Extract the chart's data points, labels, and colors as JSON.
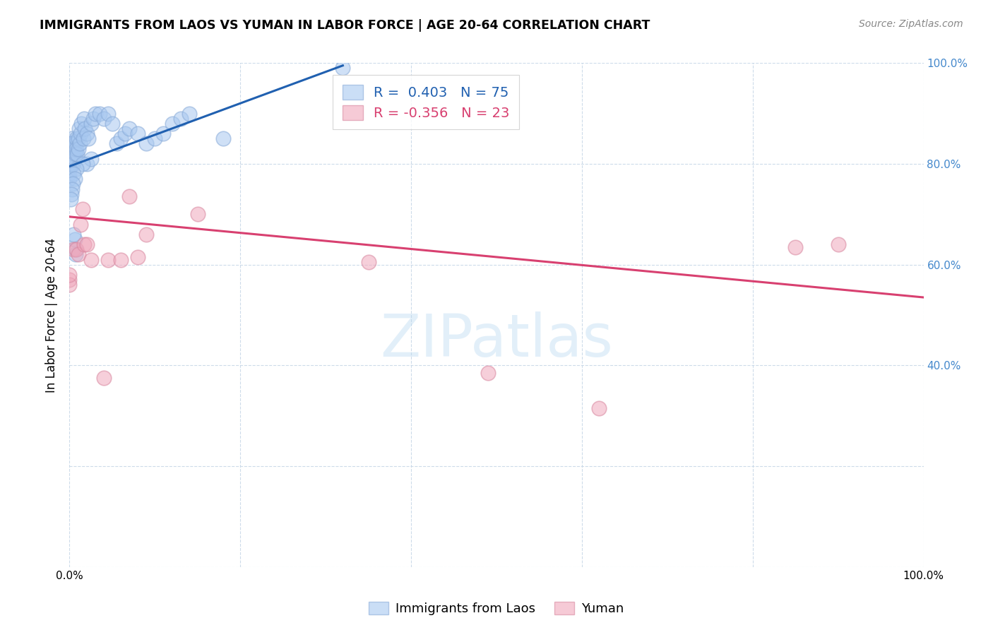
{
  "title": "IMMIGRANTS FROM LAOS VS YUMAN IN LABOR FORCE | AGE 20-64 CORRELATION CHART",
  "source": "Source: ZipAtlas.com",
  "ylabel": "In Labor Force | Age 20-64",
  "xlim": [
    0,
    1.0
  ],
  "ylim": [
    0,
    1.0
  ],
  "laos_R": 0.403,
  "laos_N": 75,
  "yuman_R": -0.356,
  "yuman_N": 23,
  "laos_color": "#a8c8f0",
  "yuman_color": "#f0a8bc",
  "laos_edge_color": "#88aad8",
  "yuman_edge_color": "#d888a0",
  "laos_line_color": "#2060b0",
  "yuman_line_color": "#d84070",
  "background_color": "#ffffff",
  "grid_color": "#c8d8e8",
  "right_tick_color": "#4488cc",
  "laos_points_x": [
    0.0,
    0.0,
    0.0,
    0.0,
    0.0,
    0.001,
    0.001,
    0.001,
    0.001,
    0.002,
    0.002,
    0.002,
    0.002,
    0.003,
    0.003,
    0.003,
    0.004,
    0.004,
    0.004,
    0.005,
    0.005,
    0.005,
    0.005,
    0.006,
    0.006,
    0.007,
    0.007,
    0.008,
    0.008,
    0.009,
    0.01,
    0.01,
    0.011,
    0.012,
    0.013,
    0.014,
    0.016,
    0.017,
    0.018,
    0.02,
    0.022,
    0.025,
    0.028,
    0.03,
    0.035,
    0.04,
    0.045,
    0.05,
    0.055,
    0.06,
    0.065,
    0.07,
    0.08,
    0.09,
    0.1,
    0.11,
    0.12,
    0.13,
    0.14,
    0.02,
    0.025,
    0.015,
    0.008,
    0.005,
    0.006,
    0.004,
    0.003,
    0.002,
    0.001,
    0.007,
    0.007,
    0.006,
    0.005,
    0.32,
    0.18
  ],
  "laos_points_y": [
    0.81,
    0.8,
    0.79,
    0.78,
    0.77,
    0.84,
    0.83,
    0.82,
    0.8,
    0.85,
    0.84,
    0.83,
    0.81,
    0.84,
    0.82,
    0.8,
    0.83,
    0.82,
    0.8,
    0.84,
    0.83,
    0.82,
    0.8,
    0.83,
    0.81,
    0.84,
    0.82,
    0.85,
    0.83,
    0.82,
    0.85,
    0.83,
    0.87,
    0.84,
    0.86,
    0.88,
    0.85,
    0.89,
    0.87,
    0.86,
    0.85,
    0.88,
    0.89,
    0.9,
    0.9,
    0.89,
    0.9,
    0.88,
    0.84,
    0.85,
    0.86,
    0.87,
    0.86,
    0.84,
    0.85,
    0.86,
    0.88,
    0.89,
    0.9,
    0.8,
    0.81,
    0.8,
    0.79,
    0.78,
    0.77,
    0.76,
    0.75,
    0.74,
    0.73,
    0.62,
    0.63,
    0.65,
    0.66,
    0.99,
    0.85
  ],
  "yuman_points_x": [
    0.0,
    0.0,
    0.0,
    0.005,
    0.008,
    0.01,
    0.013,
    0.015,
    0.017,
    0.02,
    0.025,
    0.04,
    0.045,
    0.06,
    0.09,
    0.49,
    0.62,
    0.85,
    0.9,
    0.35,
    0.15,
    0.07,
    0.08
  ],
  "yuman_points_y": [
    0.57,
    0.56,
    0.58,
    0.63,
    0.63,
    0.62,
    0.68,
    0.71,
    0.64,
    0.64,
    0.61,
    0.375,
    0.61,
    0.61,
    0.66,
    0.385,
    0.315,
    0.635,
    0.64,
    0.605,
    0.7,
    0.735,
    0.615
  ],
  "laos_line_x": [
    0.0,
    0.32
  ],
  "laos_line_y": [
    0.795,
    0.995
  ],
  "yuman_line_x": [
    0.0,
    1.0
  ],
  "yuman_line_y": [
    0.695,
    0.535
  ],
  "watermark": "ZIPatlas",
  "right_yticks": [
    0.4,
    0.6,
    0.8,
    1.0
  ],
  "right_yticklabels": [
    "40.0%",
    "60.0%",
    "80.0%",
    "100.0%"
  ]
}
